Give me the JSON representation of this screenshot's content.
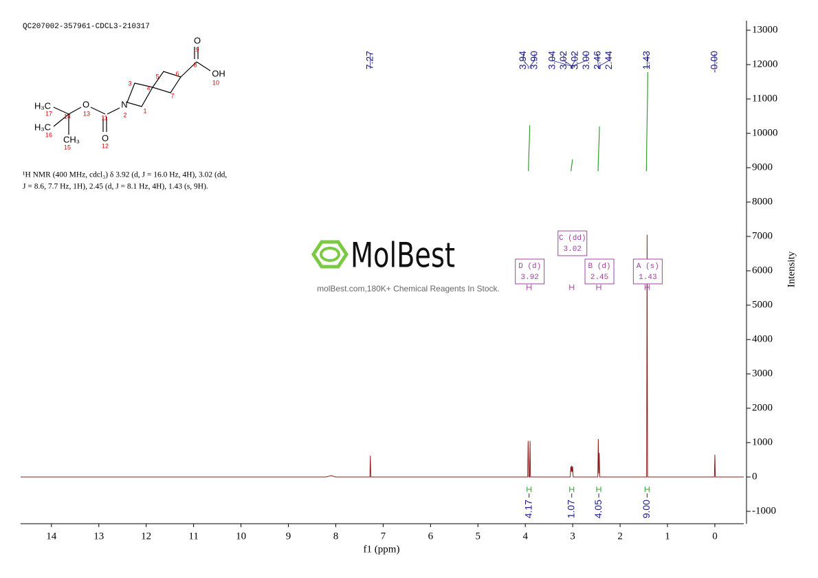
{
  "chart_data": {
    "type": "nmr",
    "title": "QC207002-357961-CDCL3-210317",
    "x_label": "f1 (ppm)",
    "y_label": "Intensity",
    "xlim": [
      14.65,
      -0.61
    ],
    "xticks": [
      14,
      13,
      12,
      11,
      10,
      9,
      8,
      7,
      6,
      5,
      4,
      3,
      2,
      1,
      0
    ],
    "ylim": [
      -1360,
      13280
    ],
    "yticks": [
      -1000,
      0,
      1000,
      2000,
      3000,
      4000,
      5000,
      6000,
      7000,
      8000,
      9000,
      10000,
      11000,
      12000,
      13000
    ],
    "series": [
      {
        "name": "spectrum",
        "color": "#8b1a1a",
        "x": [
          14.65,
          8.2,
          8.1,
          8.0,
          7.28,
          7.27,
          7.26,
          3.95,
          3.94,
          3.925,
          3.91,
          3.9,
          3.89,
          3.05,
          3.04,
          3.03,
          3.02,
          3.01,
          3.0,
          2.99,
          2.47,
          2.46,
          2.45,
          2.44,
          2.43,
          1.44,
          1.43,
          1.42,
          0.01,
          0.0,
          -0.01,
          -0.61
        ],
        "values": [
          0,
          0,
          40,
          0,
          0,
          620,
          0,
          0,
          1050,
          0,
          0,
          1050,
          0,
          0,
          300,
          150,
          330,
          150,
          300,
          0,
          0,
          1100,
          100,
          700,
          0,
          0,
          7050,
          0,
          0,
          650,
          0,
          0
        ]
      }
    ],
    "peak_labels": [
      {
        "value": 7.27,
        "label": "7.27"
      },
      {
        "value": 3.94,
        "label": "3.94"
      },
      {
        "value": 3.9,
        "label": "3.90"
      },
      {
        "value": 3.04,
        "label": "3.04"
      },
      {
        "value": 3.02,
        "label": "3.02"
      },
      {
        "value": 3.02,
        "label": "3.02"
      },
      {
        "value": 3.0,
        "label": "3.00"
      },
      {
        "value": 2.46,
        "label": "2.46"
      },
      {
        "value": 2.44,
        "label": "2.44"
      },
      {
        "value": 1.43,
        "label": "1.43"
      },
      {
        "value": 0,
        "label": "-0.00"
      }
    ],
    "peak_label_color": "#1a1a8b",
    "integrals": {
      "color": "#2e9e2e",
      "x": [
        3.92,
        3.02,
        2.45,
        1.43
      ],
      "values": [
        4.17,
        1.07,
        4.05,
        9
      ],
      "value_labels": [
        "4.17",
        "1.07",
        "4.05",
        "9.00"
      ]
    },
    "multiplets": [
      {
        "label": "D (d)",
        "shift": 3.92
      },
      {
        "label": "C (dd)",
        "shift": 3.02
      },
      {
        "label": "B (d)",
        "shift": 2.45
      },
      {
        "label": "A (s)",
        "shift": 1.43
      }
    ],
    "multiplet_color": "#a040a0",
    "description": [
      "¹H NMR (400 MHz, cdcl₃) δ 3.92 (d, J = 16.0 Hz, 4H), 3.02 (dd,",
      "J = 8.6, 7.7 Hz, 1H), 2.45 (d, J = 8.1 Hz, 4H), 1.43 (s, 9H)."
    ],
    "watermark": {
      "brand": "MolBest",
      "tagline": "molBest.com,180K+ Chemical Reagents In Stock."
    },
    "molecule": {
      "atoms": [
        "O",
        "9",
        "8",
        "OH",
        "10",
        "5",
        "6",
        "3",
        "4",
        "7",
        "H₃C",
        "17",
        "O",
        "13",
        "N",
        "2",
        "1",
        "14",
        "11",
        "H₃C",
        "16",
        "CH₃",
        "15",
        "O",
        "12"
      ]
    }
  }
}
